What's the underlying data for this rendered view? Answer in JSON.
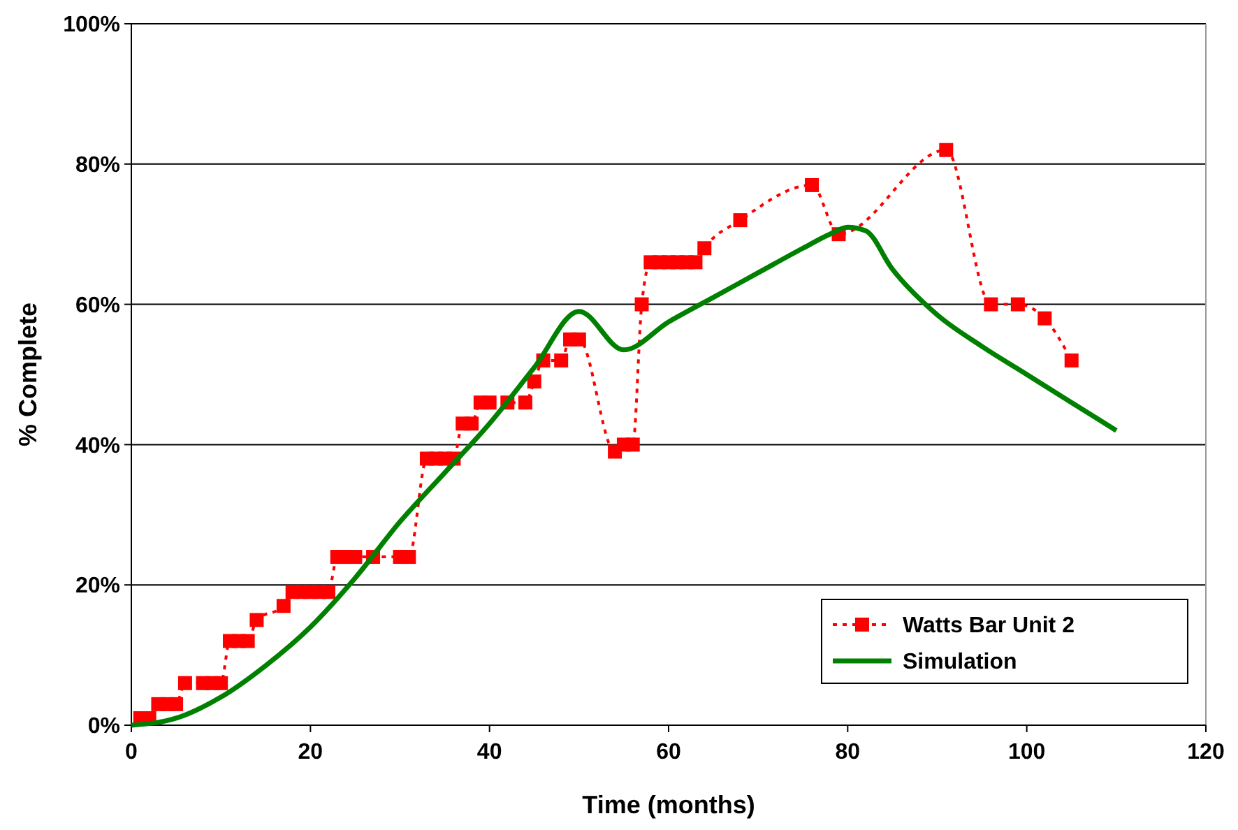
{
  "chart_data": {
    "type": "line",
    "xlabel": "Time (months)",
    "ylabel": "% Complete",
    "xlim": [
      0,
      120
    ],
    "xticks": [
      0,
      20,
      40,
      60,
      80,
      100,
      120
    ],
    "ylim": [
      0,
      100
    ],
    "yticks": [
      {
        "value": 0,
        "label": "0%"
      },
      {
        "value": 20,
        "label": "20%"
      },
      {
        "value": 40,
        "label": "40%"
      },
      {
        "value": 60,
        "label": "60%"
      },
      {
        "value": 80,
        "label": "80%"
      },
      {
        "value": 100,
        "label": "100%"
      }
    ],
    "grid": "y",
    "legend": "bottom right",
    "series": [
      {
        "name": "Watts Bar Unit 2",
        "color": "#ff0000",
        "marker": "square",
        "line_style": "dotted",
        "x": [
          1,
          2,
          3,
          4,
          5,
          6,
          8,
          9,
          10,
          11,
          12,
          13,
          14,
          17,
          18,
          19,
          20,
          21,
          22,
          23,
          24,
          25,
          27,
          30,
          31,
          33,
          34,
          35,
          36,
          37,
          38,
          39,
          40,
          42,
          44,
          45,
          46,
          48,
          49,
          50,
          54,
          55,
          56,
          57,
          58,
          59,
          60,
          61,
          62,
          63,
          64,
          68,
          76,
          79,
          91,
          96,
          99,
          102,
          105
        ],
        "values": [
          1,
          1,
          3,
          3,
          3,
          6,
          6,
          6,
          6,
          12,
          12,
          12,
          15,
          17,
          19,
          19,
          19,
          19,
          19,
          24,
          24,
          24,
          24,
          24,
          24,
          38,
          38,
          38,
          38,
          43,
          43,
          46,
          46,
          46,
          46,
          49,
          52,
          52,
          55,
          55,
          39,
          40,
          40,
          60,
          66,
          66,
          66,
          66,
          66,
          66,
          68,
          72,
          77,
          70,
          82,
          60,
          60,
          58,
          52
        ]
      },
      {
        "name": "Simulation",
        "color": "#008000",
        "marker": "none",
        "line_style": "solid",
        "x": [
          0,
          5,
          10,
          15,
          20,
          25,
          30,
          35,
          40,
          45,
          50,
          55,
          60,
          65,
          70,
          75,
          78,
          80,
          82,
          85,
          90,
          95,
          100,
          105,
          110
        ],
        "values": [
          0,
          1,
          4,
          8.5,
          14,
          21,
          29,
          36,
          43,
          51,
          59,
          53.5,
          57.5,
          61,
          64.5,
          68,
          70,
          71,
          70.5,
          65,
          58.5,
          54,
          50,
          46,
          42
        ]
      }
    ]
  }
}
